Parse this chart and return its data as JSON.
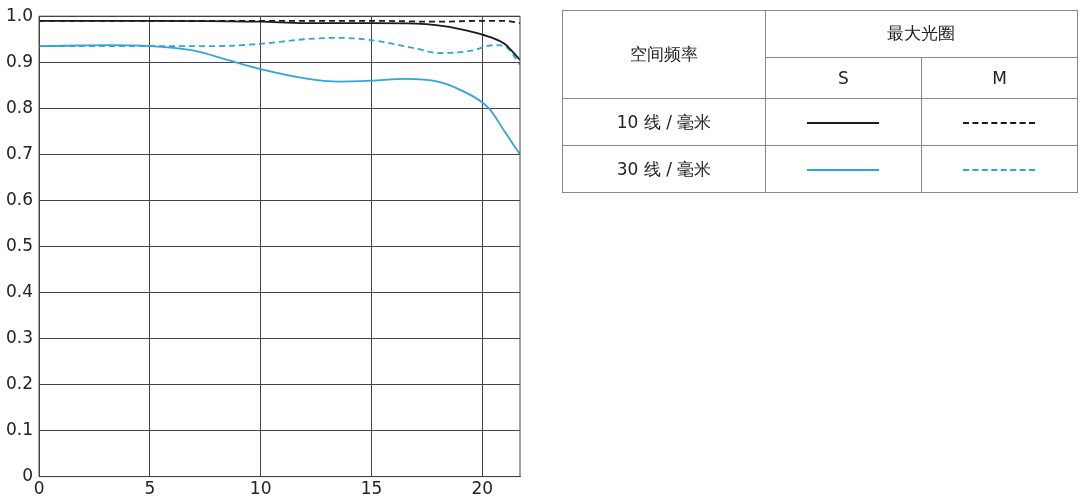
{
  "chart_data": {
    "type": "line",
    "xlim": [
      0,
      21.7
    ],
    "xticks": [
      0,
      5,
      10,
      15,
      20
    ],
    "ylim": [
      0,
      1.0
    ],
    "yticks": [
      {
        "value": 0,
        "label": "0"
      },
      0.1,
      0.2,
      0.3,
      0.4,
      0.5,
      0.6,
      0.7,
      0.8,
      0.9,
      {
        "value": 1.0,
        "label": "1.0"
      }
    ],
    "grid": true,
    "legend": false,
    "marker": "none",
    "annotations": [
      "空间频率",
      "最大光圈",
      "S",
      "M",
      "10 线 / 毫米",
      "30 线 / 毫米"
    ],
    "series": [
      {
        "color": "#1a1a1a",
        "line_style": "solid",
        "x": [
          0,
          5,
          10,
          12,
          15,
          17,
          18,
          19,
          20,
          21,
          21.7
        ],
        "values": [
          0.99,
          0.99,
          0.988,
          0.985,
          0.985,
          0.984,
          0.98,
          0.972,
          0.96,
          0.94,
          0.905
        ]
      },
      {
        "color": "#1a1a1a",
        "line_style": "dashed",
        "x": [
          0,
          5,
          10,
          15,
          18,
          20,
          21,
          21.7
        ],
        "values": [
          0.99,
          0.99,
          0.99,
          0.99,
          0.988,
          0.99,
          0.99,
          0.985
        ]
      },
      {
        "color": "#2ea6d8",
        "line_style": "solid",
        "x": [
          0,
          3,
          5,
          7,
          8.5,
          10,
          12,
          13.5,
          15,
          16.5,
          18,
          19,
          20.3,
          21,
          21.7
        ],
        "values": [
          0.935,
          0.937,
          0.935,
          0.925,
          0.905,
          0.885,
          0.865,
          0.858,
          0.86,
          0.864,
          0.858,
          0.84,
          0.8,
          0.75,
          0.7
        ]
      },
      {
        "color": "#2ea6d8",
        "line_style": "dashed",
        "x": [
          0,
          6,
          8,
          10,
          12,
          13.5,
          15,
          17,
          18,
          19.5,
          20.5,
          21,
          21.7
        ],
        "values": [
          0.935,
          0.935,
          0.935,
          0.94,
          0.95,
          0.953,
          0.948,
          0.93,
          0.92,
          0.925,
          0.937,
          0.935,
          0.895
        ]
      }
    ]
  }
}
